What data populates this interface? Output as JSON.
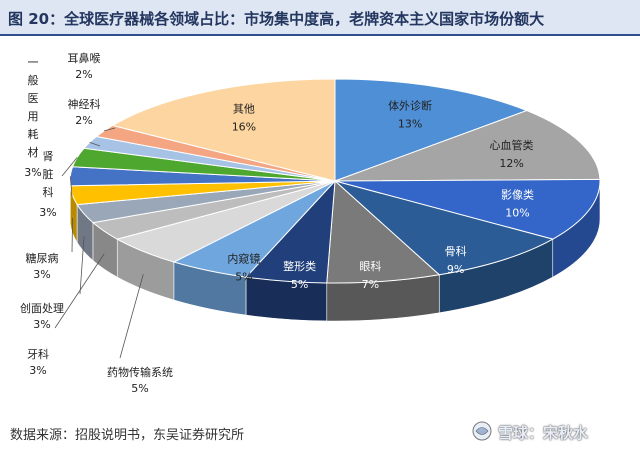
{
  "title": "图 20：全球医疗器械各领域占比：市场集中度高，老牌资本主义国家市场份额大",
  "source": "数据来源：招股说明书，东吴证券研究所",
  "watermark": "雪球：宋秋水",
  "chart_data": {
    "type": "pie",
    "style": "3d",
    "slices": [
      {
        "label": "体外诊断",
        "value": 13,
        "value_text": "13%",
        "color": "#4f8fd6"
      },
      {
        "label": "心血管类",
        "value": 12,
        "value_text": "12%",
        "color": "#a5a5a5"
      },
      {
        "label": "影像类",
        "value": 10,
        "value_text": "10%",
        "color": "#3366c8"
      },
      {
        "label": "骨科",
        "value": 9,
        "value_text": "9%",
        "color": "#2b5c95"
      },
      {
        "label": "眼科",
        "value": 7,
        "value_text": "7%",
        "color": "#7a7a7a"
      },
      {
        "label": "整形类",
        "value": 5,
        "value_text": "5%",
        "color": "#213f7a"
      },
      {
        "label": "内窥镜",
        "value": 5,
        "value_text": "5%",
        "color": "#6fa6de"
      },
      {
        "label": "药物传输系统",
        "value": 5,
        "value_text": "5%",
        "color": "#d9d9d9"
      },
      {
        "label": "牙科",
        "value": 3,
        "value_text": "3%",
        "color": "#bdbdbd"
      },
      {
        "label": "创面处理",
        "value": 3,
        "value_text": "3%",
        "color": "#9aa7b8"
      },
      {
        "label": "糖尿病",
        "value": 3,
        "value_text": "3%",
        "color": "#ffc000"
      },
      {
        "label": "肾脏科",
        "value": 3,
        "value_text": "3%",
        "color": "#4472c4"
      },
      {
        "label": "一般医用耗材",
        "value": 3,
        "value_text": "3%",
        "color": "#4ea72e"
      },
      {
        "label": "神经科",
        "value": 2,
        "value_text": "2%",
        "color": "#a6c3e6"
      },
      {
        "label": "耳鼻喉",
        "value": 2,
        "value_text": "2%",
        "color": "#f4a582"
      },
      {
        "label": "其他",
        "value": 16,
        "value_text": "16%",
        "color": "#fcd5a0"
      }
    ]
  }
}
